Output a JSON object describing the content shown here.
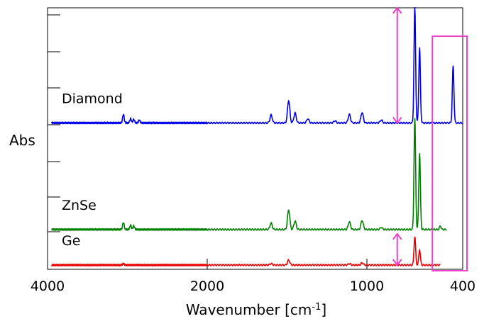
{
  "chart_data": {
    "type": "line",
    "title": "",
    "xlabel": "Wavenumber [cm",
    "xlabel_sup": "-1",
    "xlabel_end": "]",
    "ylabel": "Abs",
    "xlim": [
      4000,
      400
    ],
    "x_reversed": true,
    "x_ticks": [
      4000,
      2000,
      1000,
      400
    ],
    "x_tick_labels": [
      "4000",
      "2000",
      "1000",
      "400"
    ],
    "grid": false,
    "legend": "none",
    "series": [
      {
        "name": "Diamond",
        "color": "#0000ee",
        "baseline": 0.0,
        "x_end": 400,
        "peaks": [
          {
            "x": 3050,
            "y": 0.6
          },
          {
            "x": 2960,
            "y": 0.3
          },
          {
            "x": 2920,
            "y": 0.25
          },
          {
            "x": 2850,
            "y": 0.2
          },
          {
            "x": 1600,
            "y": 0.55
          },
          {
            "x": 1490,
            "y": 1.6
          },
          {
            "x": 1450,
            "y": 0.7
          },
          {
            "x": 1370,
            "y": 0.3
          },
          {
            "x": 1200,
            "y": 0.15
          },
          {
            "x": 1110,
            "y": 0.6
          },
          {
            "x": 1030,
            "y": 0.75
          },
          {
            "x": 910,
            "y": 0.2
          },
          {
            "x": 700,
            "y": 8.1
          },
          {
            "x": 670,
            "y": 5.3
          },
          {
            "x": 460,
            "y": 4.0
          }
        ]
      },
      {
        "name": "ZnSe",
        "color": "#008000",
        "baseline": -7.5,
        "x_end": 500,
        "peaks": [
          {
            "x": 3050,
            "y": 0.5
          },
          {
            "x": 2960,
            "y": 0.3
          },
          {
            "x": 2920,
            "y": 0.25
          },
          {
            "x": 1600,
            "y": 0.45
          },
          {
            "x": 1490,
            "y": 1.4
          },
          {
            "x": 1450,
            "y": 0.6
          },
          {
            "x": 1110,
            "y": 0.55
          },
          {
            "x": 1030,
            "y": 0.65
          },
          {
            "x": 910,
            "y": 0.15
          },
          {
            "x": 700,
            "y": 7.8
          },
          {
            "x": 670,
            "y": 5.4
          },
          {
            "x": 540,
            "y": 0.25
          }
        ]
      },
      {
        "name": "Ge",
        "color": "#ee0000",
        "baseline": -10.0,
        "x_end": 540,
        "peaks": [
          {
            "x": 3050,
            "y": 0.1
          },
          {
            "x": 1600,
            "y": 0.1
          },
          {
            "x": 1490,
            "y": 0.35
          },
          {
            "x": 1110,
            "y": 0.1
          },
          {
            "x": 1030,
            "y": 0.15
          },
          {
            "x": 700,
            "y": 2.0
          },
          {
            "x": 670,
            "y": 1.1
          }
        ]
      }
    ],
    "annotations": {
      "arrow_color": "#ee44cc",
      "double_arrows": [
        {
          "x": 810,
          "y_from": 8.1,
          "y_to": 0.0
        },
        {
          "x": 810,
          "y_from": -7.8,
          "y_to": -10.0
        }
      ],
      "highlight_box": {
        "x_from": 590,
        "x_to": 370,
        "y_from": 6.1,
        "y_to": -10.4
      }
    },
    "ylim": [
      -10.3,
      8.1
    ]
  }
}
